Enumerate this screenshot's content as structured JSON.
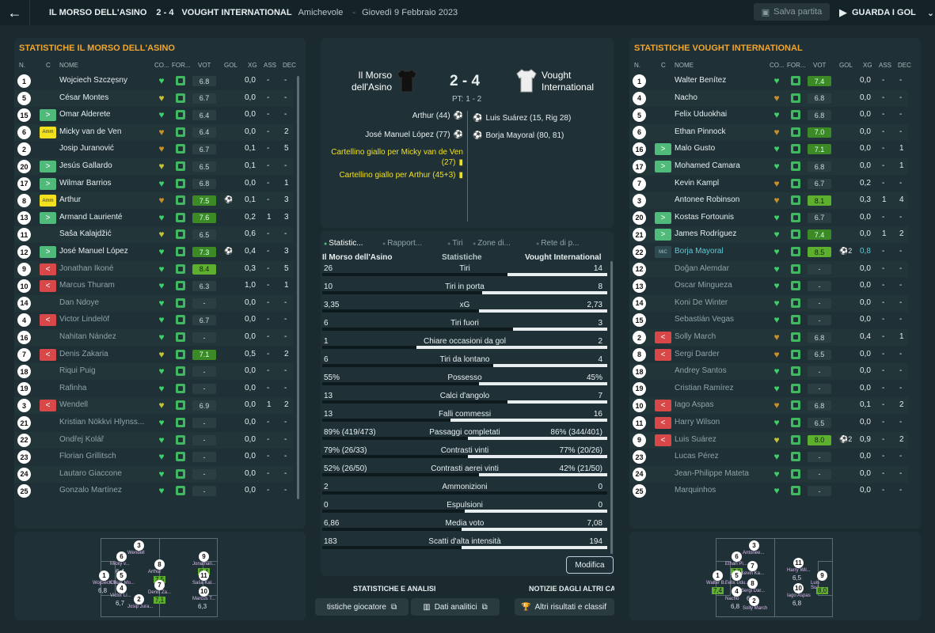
{
  "topbar": {
    "home": "IL MORSO DELL'ASINO",
    "score": "2 - 4",
    "away": "VOUGHT INTERNATIONAL",
    "type": "Amichevole",
    "date": "Giovedì 9 Febbraio 2023",
    "save": "Salva partita",
    "goals": "GUARDA I GOL"
  },
  "home_panel": {
    "title": "STATISTICHE IL MORSO DELL'ASINO"
  },
  "away_panel": {
    "title": "STATISTICHE VOUGHT INTERNATIONAL"
  },
  "cols": {
    "n": "N.",
    "c": "C",
    "name": "NOME",
    "co": "CO...",
    "fo": "FOR...",
    "vot": "VOT",
    "gol": "GOL",
    "xg": "XG",
    "ass": "ASS",
    "dec": "DEC"
  },
  "home_players": [
    {
      "n": "1",
      "sub": "",
      "name": "Wojciech Szczęsny",
      "heart": "#3fd06a",
      "vot": "6.8",
      "vc": "",
      "g": "",
      "xg": "0,0",
      "ass": "-",
      "dec": "-",
      "dim": false
    },
    {
      "n": "5",
      "sub": "",
      "name": "César Montes",
      "heart": "#c8c23a",
      "vot": "6.7",
      "vc": "",
      "g": "",
      "xg": "0,0",
      "ass": "-",
      "dec": "-",
      "dim": false
    },
    {
      "n": "15",
      "sub": "in",
      "name": "Omar Alderete",
      "heart": "#3fd06a",
      "vot": "6.4",
      "vc": "",
      "g": "",
      "xg": "0,0",
      "ass": "-",
      "dec": "-",
      "dim": false
    },
    {
      "n": "6",
      "sub": "amm",
      "name": "Micky van de Ven",
      "heart": "#c8902a",
      "vot": "6.4",
      "vc": "",
      "g": "",
      "xg": "0,0",
      "ass": "-",
      "dec": "2",
      "dim": false
    },
    {
      "n": "2",
      "sub": "",
      "name": "Josip Juranović",
      "heart": "#c8902a",
      "vot": "6.7",
      "vc": "",
      "g": "",
      "xg": "0,1",
      "ass": "-",
      "dec": "5",
      "dim": false
    },
    {
      "n": "20",
      "sub": "in",
      "name": "Jesús Gallardo",
      "heart": "#c8c23a",
      "vot": "6.5",
      "vc": "",
      "g": "",
      "xg": "0,1",
      "ass": "-",
      "dec": "-",
      "dim": false
    },
    {
      "n": "17",
      "sub": "in",
      "name": "Wilmar Barrios",
      "heart": "#3fd06a",
      "vot": "6.8",
      "vc": "",
      "g": "",
      "xg": "0,0",
      "ass": "-",
      "dec": "1",
      "dim": false
    },
    {
      "n": "8",
      "sub": "amm",
      "name": "Arthur",
      "heart": "#c8902a",
      "vot": "7.5",
      "vc": "lg",
      "g": "⚽",
      "xg": "0,1",
      "ass": "-",
      "dec": "3",
      "dim": false
    },
    {
      "n": "13",
      "sub": "in",
      "name": "Armand Laurienté",
      "heart": "#3fd06a",
      "vot": "7.6",
      "vc": "lg",
      "g": "",
      "xg": "0,2",
      "ass": "1",
      "dec": "3",
      "dim": false
    },
    {
      "n": "11",
      "sub": "",
      "name": "Saša Kalajdžić",
      "heart": "#c8c23a",
      "vot": "6.5",
      "vc": "",
      "g": "",
      "xg": "0,6",
      "ass": "-",
      "dec": "-",
      "dim": false
    },
    {
      "n": "12",
      "sub": "in",
      "name": "José Manuel López",
      "heart": "#3fd06a",
      "vot": "7.3",
      "vc": "lg",
      "g": "⚽",
      "xg": "0,4",
      "ass": "-",
      "dec": "3",
      "dim": false
    },
    {
      "n": "9",
      "sub": "out",
      "name": "Jonathan Ikoné",
      "heart": "#3fd06a",
      "vot": "8.4",
      "vc": "g",
      "g": "",
      "xg": "0,3",
      "ass": "-",
      "dec": "5",
      "dim": true
    },
    {
      "n": "10",
      "sub": "out",
      "name": "Marcus Thuram",
      "heart": "#3fd06a",
      "vot": "6.3",
      "vc": "",
      "g": "",
      "xg": "1,0",
      "ass": "-",
      "dec": "1",
      "dim": true
    },
    {
      "n": "14",
      "sub": "",
      "name": "Dan Ndoye",
      "heart": "#3fd06a",
      "vot": "-",
      "vc": "",
      "g": "",
      "xg": "0,0",
      "ass": "-",
      "dec": "-",
      "dim": true
    },
    {
      "n": "4",
      "sub": "out",
      "name": "Victor Lindelöf",
      "heart": "#3fd06a",
      "vot": "6.7",
      "vc": "",
      "g": "",
      "xg": "0,0",
      "ass": "-",
      "dec": "-",
      "dim": true
    },
    {
      "n": "16",
      "sub": "",
      "name": "Nahitan Nández",
      "heart": "#3fd06a",
      "vot": "-",
      "vc": "",
      "g": "",
      "xg": "0,0",
      "ass": "-",
      "dec": "-",
      "dim": true
    },
    {
      "n": "7",
      "sub": "out",
      "name": "Denis Zakaria",
      "heart": "#c8c23a",
      "vot": "7.1",
      "vc": "lg",
      "g": "",
      "xg": "0,5",
      "ass": "-",
      "dec": "2",
      "dim": true
    },
    {
      "n": "18",
      "sub": "",
      "name": "Riqui Puig",
      "heart": "#3fd06a",
      "vot": "-",
      "vc": "",
      "g": "",
      "xg": "0,0",
      "ass": "-",
      "dec": "-",
      "dim": true
    },
    {
      "n": "19",
      "sub": "",
      "name": "Rafinha",
      "heart": "#3fd06a",
      "vot": "-",
      "vc": "",
      "g": "",
      "xg": "0,0",
      "ass": "-",
      "dec": "-",
      "dim": true
    },
    {
      "n": "3",
      "sub": "out",
      "name": "Wendell",
      "heart": "#c8c23a",
      "vot": "6.9",
      "vc": "",
      "g": "",
      "xg": "0,0",
      "ass": "1",
      "dec": "2",
      "dim": true
    },
    {
      "n": "21",
      "sub": "",
      "name": "Kristian Nökkvi Hlynss...",
      "heart": "#3fd06a",
      "vot": "-",
      "vc": "",
      "g": "",
      "xg": "0,0",
      "ass": "-",
      "dec": "-",
      "dim": true
    },
    {
      "n": "22",
      "sub": "",
      "name": "Ondřej Kolář",
      "heart": "#3fd06a",
      "vot": "-",
      "vc": "",
      "g": "",
      "xg": "0,0",
      "ass": "-",
      "dec": "-",
      "dim": true
    },
    {
      "n": "23",
      "sub": "",
      "name": "Florian Grillitsch",
      "heart": "#3fd06a",
      "vot": "-",
      "vc": "",
      "g": "",
      "xg": "0,0",
      "ass": "-",
      "dec": "-",
      "dim": true
    },
    {
      "n": "24",
      "sub": "",
      "name": "Lautaro Giaccone",
      "heart": "#3fd06a",
      "vot": "-",
      "vc": "",
      "g": "",
      "xg": "0,0",
      "ass": "-",
      "dec": "-",
      "dim": true
    },
    {
      "n": "25",
      "sub": "",
      "name": "Gonzalo Martínez",
      "heart": "#3fd06a",
      "vot": "-",
      "vc": "",
      "g": "",
      "xg": "0,0",
      "ass": "-",
      "dec": "-",
      "dim": true
    }
  ],
  "away_players": [
    {
      "n": "1",
      "sub": "",
      "name": "Walter Benítez",
      "heart": "#3fd06a",
      "vot": "7.4",
      "vc": "lg",
      "g": "",
      "xg": "0,0",
      "ass": "-",
      "dec": "-",
      "dim": false
    },
    {
      "n": "4",
      "sub": "",
      "name": "Nacho",
      "heart": "#c8902a",
      "vot": "6.8",
      "vc": "",
      "g": "",
      "xg": "0,0",
      "ass": "-",
      "dec": "-",
      "dim": false
    },
    {
      "n": "5",
      "sub": "",
      "name": "Felix Uduokhai",
      "heart": "#3fd06a",
      "vot": "6.8",
      "vc": "",
      "g": "",
      "xg": "0,0",
      "ass": "-",
      "dec": "-",
      "dim": false
    },
    {
      "n": "6",
      "sub": "",
      "name": "Ethan Pinnock",
      "heart": "#c8902a",
      "vot": "7.0",
      "vc": "lg",
      "g": "",
      "xg": "0,0",
      "ass": "-",
      "dec": "-",
      "dim": false
    },
    {
      "n": "16",
      "sub": "in",
      "name": "Malo Gusto",
      "heart": "#3fd06a",
      "vot": "7.1",
      "vc": "lg",
      "g": "",
      "xg": "0,0",
      "ass": "-",
      "dec": "1",
      "dim": false
    },
    {
      "n": "17",
      "sub": "in",
      "name": "Mohamed Camara",
      "heart": "#3fd06a",
      "vot": "6.8",
      "vc": "",
      "g": "",
      "xg": "0,0",
      "ass": "-",
      "dec": "1",
      "dim": false
    },
    {
      "n": "7",
      "sub": "",
      "name": "Kevin Kampl",
      "heart": "#c8902a",
      "vot": "6.7",
      "vc": "",
      "g": "",
      "xg": "0,2",
      "ass": "-",
      "dec": "-",
      "dim": false
    },
    {
      "n": "3",
      "sub": "",
      "name": "Antonee Robinson",
      "heart": "#c8902a",
      "vot": "8.1",
      "vc": "g",
      "g": "",
      "xg": "0,3",
      "ass": "1",
      "dec": "4",
      "dim": false
    },
    {
      "n": "20",
      "sub": "in",
      "name": "Kostas Fortounis",
      "heart": "#3fd06a",
      "vot": "6.7",
      "vc": "",
      "g": "",
      "xg": "0,0",
      "ass": "-",
      "dec": "-",
      "dim": false
    },
    {
      "n": "21",
      "sub": "in",
      "name": "James Rodríguez",
      "heart": "#3fd06a",
      "vot": "7.4",
      "vc": "lg",
      "g": "",
      "xg": "0,0",
      "ass": "1",
      "dec": "2",
      "dim": false
    },
    {
      "n": "22",
      "sub": "mic",
      "name": "Borja Mayoral",
      "heart": "#3fd06a",
      "vot": "8.5",
      "vc": "g",
      "g": "⚽2",
      "xg": "0,8",
      "ass": "-",
      "dec": "-",
      "dim": false,
      "hl": true
    },
    {
      "n": "12",
      "sub": "",
      "name": "Doğan Alemdar",
      "heart": "#3fd06a",
      "vot": "-",
      "vc": "",
      "g": "",
      "xg": "0,0",
      "ass": "-",
      "dec": "-",
      "dim": true
    },
    {
      "n": "13",
      "sub": "",
      "name": "Óscar Mingueza",
      "heart": "#3fd06a",
      "vot": "-",
      "vc": "",
      "g": "",
      "xg": "0,0",
      "ass": "-",
      "dec": "-",
      "dim": true
    },
    {
      "n": "14",
      "sub": "",
      "name": "Koni De Winter",
      "heart": "#3fd06a",
      "vot": "-",
      "vc": "",
      "g": "",
      "xg": "0,0",
      "ass": "-",
      "dec": "-",
      "dim": true
    },
    {
      "n": "15",
      "sub": "",
      "name": "Sebastián Vegas",
      "heart": "#3fd06a",
      "vot": "-",
      "vc": "",
      "g": "",
      "xg": "0,0",
      "ass": "-",
      "dec": "-",
      "dim": true
    },
    {
      "n": "2",
      "sub": "out",
      "name": "Solly March",
      "heart": "#c8902a",
      "vot": "6.8",
      "vc": "",
      "g": "",
      "xg": "0,4",
      "ass": "-",
      "dec": "1",
      "dim": true
    },
    {
      "n": "8",
      "sub": "out",
      "name": "Sergi Darder",
      "heart": "#c8902a",
      "vot": "6.5",
      "vc": "",
      "g": "",
      "xg": "0,0",
      "ass": "-",
      "dec": "-",
      "dim": true
    },
    {
      "n": "18",
      "sub": "",
      "name": "Andrey Santos",
      "heart": "#3fd06a",
      "vot": "-",
      "vc": "",
      "g": "",
      "xg": "0,0",
      "ass": "-",
      "dec": "-",
      "dim": true
    },
    {
      "n": "19",
      "sub": "",
      "name": "Cristian Ramírez",
      "heart": "#3fd06a",
      "vot": "-",
      "vc": "",
      "g": "",
      "xg": "0,0",
      "ass": "-",
      "dec": "-",
      "dim": true
    },
    {
      "n": "10",
      "sub": "out",
      "name": "Iago Aspas",
      "heart": "#c8902a",
      "vot": "6.8",
      "vc": "",
      "g": "",
      "xg": "0,1",
      "ass": "-",
      "dec": "2",
      "dim": true
    },
    {
      "n": "11",
      "sub": "out",
      "name": "Harry Wilson",
      "heart": "#3fd06a",
      "vot": "6.5",
      "vc": "",
      "g": "",
      "xg": "0,0",
      "ass": "-",
      "dec": "-",
      "dim": true
    },
    {
      "n": "9",
      "sub": "out",
      "name": "Luis Suárez",
      "heart": "#c8c23a",
      "vot": "8.0",
      "vc": "g",
      "g": "⚽2",
      "xg": "0,9",
      "ass": "-",
      "dec": "2",
      "dim": true
    },
    {
      "n": "23",
      "sub": "",
      "name": "Lucas Pérez",
      "heart": "#3fd06a",
      "vot": "-",
      "vc": "",
      "g": "",
      "xg": "0,0",
      "ass": "-",
      "dec": "-",
      "dim": true
    },
    {
      "n": "24",
      "sub": "",
      "name": "Jean-Philippe Mateta",
      "heart": "#3fd06a",
      "vot": "-",
      "vc": "",
      "g": "",
      "xg": "0,0",
      "ass": "-",
      "dec": "-",
      "dim": true
    },
    {
      "n": "25",
      "sub": "",
      "name": "Marquinhos",
      "heart": "#3fd06a",
      "vot": "-",
      "vc": "",
      "g": "",
      "xg": "0,0",
      "ass": "-",
      "dec": "-",
      "dim": true
    }
  ],
  "match": {
    "home_name": "Il Morso dell'Asino",
    "away_name": "Vought International",
    "score": "2 - 4",
    "ht": "PT: 1 - 2",
    "home_events": [
      "Arthur (44)",
      "José Manuel López (77)",
      "Cartellino giallo per Micky van de Ven (27)",
      "Cartellino giallo per Arthur (45+3)"
    ],
    "away_events": [
      "Luis Suárez (15, Rig 28)",
      "Borja Mayoral (80, 81)"
    ]
  },
  "stats_tabs": [
    "Statistic...",
    "Rapport...",
    "Tiri",
    "Zone di...",
    "Rete di p..."
  ],
  "stats_header": {
    "home": "Il Morso dell'Asino",
    "mid": "Statistiche",
    "away": "Vought International"
  },
  "stats": [
    {
      "h": "26",
      "label": "Tiri",
      "a": "14",
      "hp": 0.65
    },
    {
      "h": "10",
      "label": "Tiri in porta",
      "a": "8",
      "hp": 0.56
    },
    {
      "h": "3,35",
      "label": "xG",
      "a": "2,73",
      "hp": 0.55
    },
    {
      "h": "6",
      "label": "Tiri fuori",
      "a": "3",
      "hp": 0.67
    },
    {
      "h": "1",
      "label": "Chiare occasioni da gol",
      "a": "2",
      "hp": 0.33
    },
    {
      "h": "6",
      "label": "Tiri da lontano",
      "a": "4",
      "hp": 0.6
    },
    {
      "h": "55%",
      "label": "Possesso",
      "a": "45%",
      "hp": 0.55
    },
    {
      "h": "13",
      "label": "Calci d'angolo",
      "a": "7",
      "hp": 0.65
    },
    {
      "h": "13",
      "label": "Falli commessi",
      "a": "16",
      "hp": 0.45
    },
    {
      "h": "89% (419/473)",
      "label": "Passaggi completati",
      "a": "86% (344/401)",
      "hp": 0.51
    },
    {
      "h": "79% (26/33)",
      "label": "Contrasti vinti",
      "a": "77% (20/26)",
      "hp": 0.51
    },
    {
      "h": "52% (26/50)",
      "label": "Contrasti aerei vinti",
      "a": "42% (21/50)",
      "hp": 0.55
    },
    {
      "h": "2",
      "label": "Ammonizioni",
      "a": "0",
      "hp": 1.0
    },
    {
      "h": "0",
      "label": "Espulsioni",
      "a": "0",
      "hp": 0.5
    },
    {
      "h": "6,86",
      "label": "Media voto",
      "a": "7,08",
      "hp": 0.49
    },
    {
      "h": "183",
      "label": "Scatti d'alta intensità",
      "a": "194",
      "hp": 0.49
    }
  ],
  "modifica": "Modifica",
  "bottom": {
    "h1": "STATISTICHE E ANALISI",
    "h2": "NOTIZIE DAGLI ALTRI CA",
    "b1": "tistiche giocatore",
    "b2": "Dati analitici",
    "b3": "Altri risultati e classif"
  },
  "home_pitch": [
    {
      "n": "3",
      "name": "Wendell",
      "v": "",
      "g": false
    },
    {
      "n": "6",
      "name": "Micky v...",
      "v": "6,4",
      "g": false
    },
    {
      "n": "8",
      "name": "Arthur",
      "v": "7,5",
      "g": true
    },
    {
      "n": "1",
      "name": "Wojciech S...",
      "v": "6,8",
      "g": false
    },
    {
      "n": "5",
      "name": "César Mo...",
      "v": "",
      "g": false
    },
    {
      "n": "7",
      "name": "Denis Za...",
      "v": "7,1",
      "g": true
    },
    {
      "n": "4",
      "name": "Victor Li...",
      "v": "6,7",
      "g": false
    },
    {
      "n": "2",
      "name": "Josip Jura...",
      "v": "",
      "g": false
    },
    {
      "n": "9",
      "name": "Jonathan...",
      "v": "8,4",
      "g": true
    },
    {
      "n": "11",
      "name": "Saša Kal...",
      "v": "",
      "g": false
    },
    {
      "n": "10",
      "name": "Marcus T...",
      "v": "6,3",
      "g": false
    }
  ],
  "away_pitch": [
    {
      "n": "3",
      "name": "Antonee...",
      "v": "",
      "g": false
    },
    {
      "n": "6",
      "name": "Ethan Pi...",
      "v": "7,0",
      "g": true
    },
    {
      "n": "7",
      "name": "Kevin Ka...",
      "v": "",
      "g": false
    },
    {
      "n": "1",
      "name": "Walter B...",
      "v": "7,4",
      "g": true
    },
    {
      "n": "5",
      "name": "Felix Udu...",
      "v": "",
      "g": false
    },
    {
      "n": "8",
      "name": "Sergi Dar...",
      "v": "6,5",
      "g": false
    },
    {
      "n": "4",
      "name": "Nacho",
      "v": "6,8",
      "g": false
    },
    {
      "n": "2",
      "name": "Solly March",
      "v": "",
      "g": false
    },
    {
      "n": "11",
      "name": "Harry Wil...",
      "v": "6,5",
      "g": false
    },
    {
      "n": "10",
      "name": "Iago Aspas",
      "v": "6,8",
      "g": false
    },
    {
      "n": "9",
      "name": "Luis Suá...",
      "v": "8,0",
      "g": true
    }
  ]
}
